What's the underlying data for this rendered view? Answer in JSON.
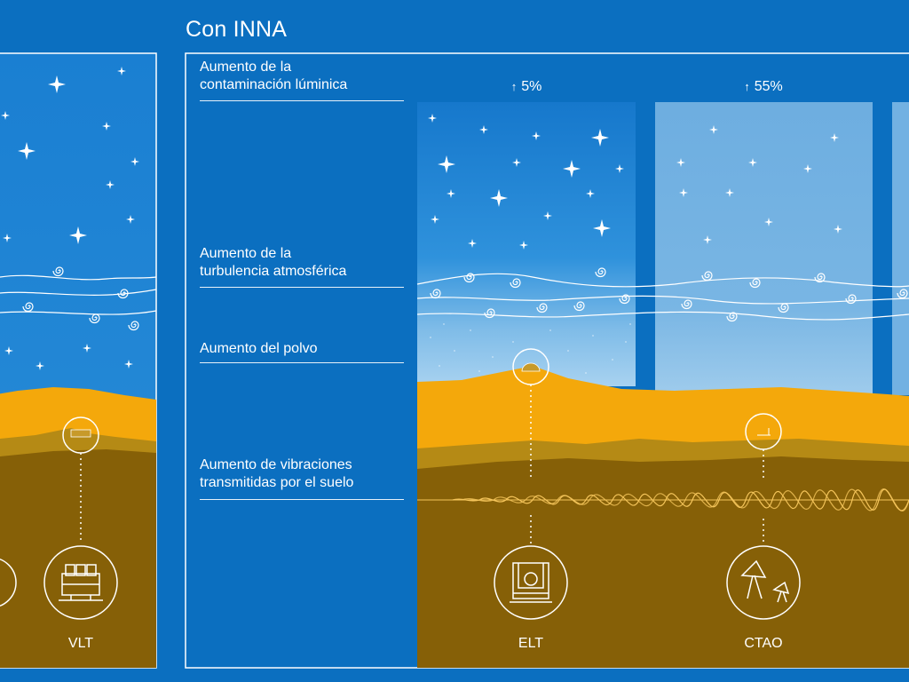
{
  "heading": "Con INNA",
  "factors": [
    {
      "label": "Aumento de la\ncontaminación lúminica"
    },
    {
      "label": "Aumento de la\nturbulencia atmosférica"
    },
    {
      "label": "Aumento del polvo"
    },
    {
      "label": "Aumento de vibraciones\ntransmitidas por el suelo"
    }
  ],
  "light_pollution_increase": [
    {
      "site": "ELT",
      "value": "5%",
      "percent": 5
    },
    {
      "site": "CTAO",
      "value": "55%",
      "percent": 55
    }
  ],
  "telescopes": [
    {
      "name": "VLT",
      "icon": "vlt-telescope-icon"
    },
    {
      "name": "ELT",
      "icon": "elt-dome-icon"
    },
    {
      "name": "CTAO",
      "icon": "ctao-dishes-icon"
    }
  ],
  "colors": {
    "background": "#0b6fc0",
    "sky": "#1678cc",
    "mountains": "#f4a80b",
    "mid_ground": "#b58a15",
    "ground": "#866007",
    "lines": "#ffffff"
  }
}
